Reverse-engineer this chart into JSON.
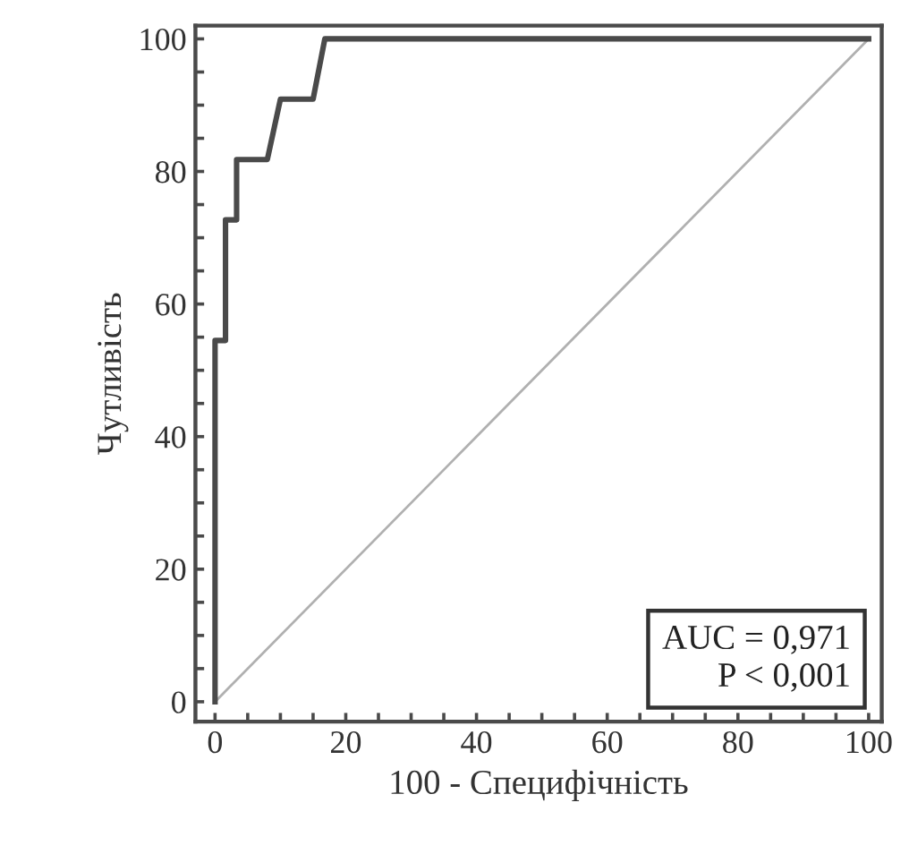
{
  "chart_data": {
    "type": "line",
    "xlabel": "100 - Специфічність",
    "ylabel": "Чутливість",
    "series": [
      {
        "color": "#4a4a4a",
        "x": [
          0,
          0,
          1.6,
          1.6,
          3.3,
          3.3,
          8,
          10,
          15,
          16.8,
          100
        ],
        "values": [
          0,
          54.5,
          54.5,
          72.7,
          72.7,
          81.8,
          81.8,
          90.9,
          90.9,
          100,
          100
        ]
      },
      {
        "color": "#b0b0b0",
        "x": [
          0,
          100
        ],
        "values": [
          0,
          100
        ]
      }
    ],
    "annotations": [
      "AUC = 0,971\nP < 0,001"
    ],
    "xlim": [
      -3,
      102
    ],
    "ylim": [
      -3,
      102
    ],
    "xticks": [
      0,
      {
        "value": 5,
        "label": null
      },
      {
        "value": 10,
        "label": null
      },
      {
        "value": 15,
        "label": null
      },
      20,
      {
        "value": 25,
        "label": null
      },
      {
        "value": 30,
        "label": null
      },
      {
        "value": 35,
        "label": null
      },
      40,
      {
        "value": 45,
        "label": null
      },
      {
        "value": 50,
        "label": null
      },
      {
        "value": 55,
        "label": null
      },
      60,
      {
        "value": 65,
        "label": null
      },
      {
        "value": 70,
        "label": null
      },
      {
        "value": 75,
        "label": null
      },
      80,
      {
        "value": 85,
        "label": null
      },
      {
        "value": 90,
        "label": null
      },
      {
        "value": 95,
        "label": null
      },
      100
    ],
    "yticks": [
      0,
      {
        "value": 5,
        "label": null
      },
      {
        "value": 10,
        "label": null
      },
      {
        "value": 15,
        "label": null
      },
      20,
      {
        "value": 25,
        "label": null
      },
      {
        "value": 30,
        "label": null
      },
      {
        "value": 35,
        "label": null
      },
      40,
      {
        "value": 45,
        "label": null
      },
      {
        "value": 50,
        "label": null
      },
      {
        "value": 55,
        "label": null
      },
      60,
      {
        "value": 65,
        "label": null
      },
      {
        "value": 70,
        "label": null
      },
      {
        "value": 75,
        "label": null
      },
      80,
      {
        "value": 85,
        "label": null
      },
      {
        "value": 90,
        "label": null
      },
      {
        "value": 95,
        "label": null
      },
      100
    ],
    "grid": false,
    "legend": false,
    "marker": "none",
    "line_style": "solid"
  }
}
